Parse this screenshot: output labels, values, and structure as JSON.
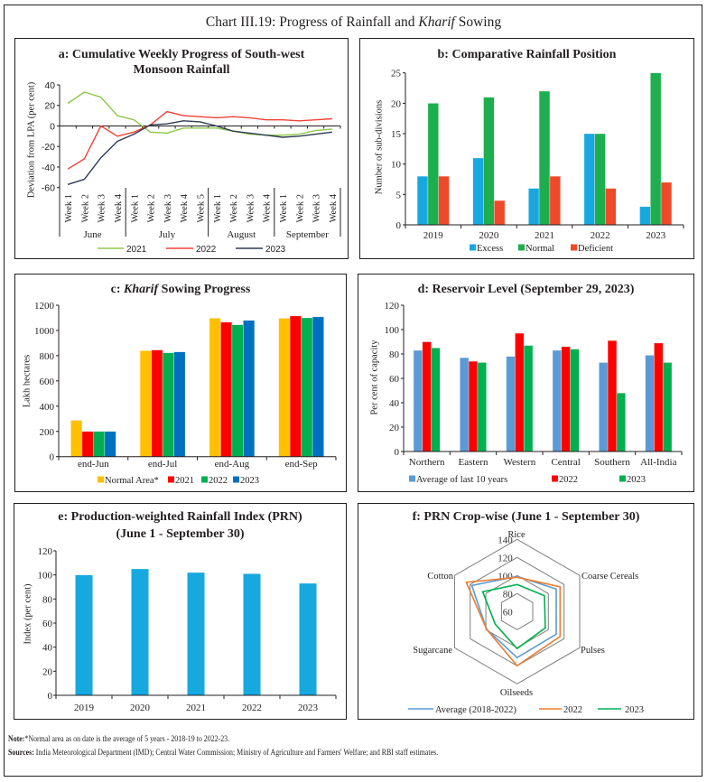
{
  "header": {
    "title_part1": "Chart III.19: Progress of Rainfall and ",
    "title_italic": "Kharif",
    "title_part2": " Sowing"
  },
  "chart_data": [
    {
      "id": "a",
      "type": "line",
      "title_lines": [
        "a: Cumulative Weekly Progress of South-west",
        "Monsoon Rainfall"
      ],
      "xlabel": "",
      "ylabel": "Deviation from LPA (per cent)",
      "ylim": [
        -60,
        40
      ],
      "yticks": [
        "40",
        "20",
        "0",
        "-20",
        "-40",
        "-60"
      ],
      "ytick_values": [
        40,
        20,
        0,
        -20,
        -40,
        -60
      ],
      "x": [
        "Week 1",
        "Week 2",
        "Week 3",
        "Week 4",
        "Week 1",
        "Week 2",
        "Week 3",
        "Week 4",
        "Week 5",
        "Week 1",
        "Week 2",
        "Week 3",
        "Week 4",
        "Week 1",
        "Week 2",
        "Week 3",
        "Week 4"
      ],
      "month_groups": [
        {
          "name": "June",
          "weeks": 4
        },
        {
          "name": "July",
          "weeks": 5
        },
        {
          "name": "August",
          "weeks": 4
        },
        {
          "name": "September",
          "weeks": 4
        }
      ],
      "series": [
        {
          "name": "2021",
          "color": "#8CC84B",
          "values": [
            22,
            33,
            28,
            10,
            6,
            -6,
            -7,
            -2,
            -2,
            -2,
            -5,
            -8,
            -9,
            -9,
            -8,
            -4.5,
            -3
          ]
        },
        {
          "name": "2022",
          "color": "#F0423A",
          "values": [
            -42,
            -32,
            0,
            -10,
            -6,
            1,
            14,
            10,
            9,
            8,
            9,
            8,
            6,
            6,
            5,
            6,
            7
          ]
        },
        {
          "name": "2023",
          "color": "#2E3B55",
          "values": [
            -57,
            -52,
            -31,
            -15,
            -8,
            1,
            2,
            5,
            4,
            0,
            -5,
            -7,
            -9,
            -11,
            -10,
            -8,
            -6
          ]
        }
      ],
      "legend": "bottom",
      "grid": false
    },
    {
      "id": "b",
      "type": "bar",
      "title": "b: Comparative Rainfall Position",
      "xlabel": "",
      "ylabel": "Number of sub-divisions",
      "ylim": [
        0,
        25
      ],
      "yticks": [
        "0",
        "5",
        "10",
        "15",
        "20",
        "25"
      ],
      "ytick_values": [
        0,
        5,
        10,
        15,
        20,
        25
      ],
      "categories": [
        "2019",
        "2020",
        "2021",
        "2022",
        "2023"
      ],
      "series": [
        {
          "name": "Excess",
          "color": "#17A8E0",
          "values": [
            8,
            11,
            6,
            15,
            3
          ]
        },
        {
          "name": "Normal",
          "color": "#1DAF4E",
          "values": [
            20,
            21,
            22,
            15,
            25
          ]
        },
        {
          "name": "Deficient",
          "color": "#EE4A2A",
          "values": [
            8,
            4,
            8,
            6,
            7
          ]
        }
      ],
      "legend": "bottom",
      "grid": false
    },
    {
      "id": "c",
      "type": "bar",
      "title_parts": [
        "c: ",
        "Kharif",
        " Sowing Progress"
      ],
      "xlabel": "",
      "ylabel": "Lakh hectares",
      "ylim": [
        0,
        1200
      ],
      "yticks": [
        "0",
        "200",
        "400",
        "600",
        "800",
        "1000",
        "1200"
      ],
      "ytick_values": [
        0,
        200,
        400,
        600,
        800,
        1000,
        1200
      ],
      "categories": [
        "end-Jun",
        "end-Jul",
        "end-Aug",
        "end-Sep"
      ],
      "series": [
        {
          "name": "Normal Area*",
          "color": "#FFC000",
          "values": [
            288,
            840,
            1098,
            1097
          ]
        },
        {
          "name": "2021",
          "color": "#FF0000",
          "values": [
            200,
            845,
            1066,
            1115
          ]
        },
        {
          "name": "2022",
          "color": "#00B050",
          "values": [
            200,
            823,
            1045,
            1100
          ]
        },
        {
          "name": "2023",
          "color": "#0070C0",
          "values": [
            200,
            830,
            1080,
            1108
          ]
        }
      ],
      "legend": "bottom",
      "grid": false
    },
    {
      "id": "d",
      "type": "bar",
      "title": "d: Reservoir Level (September 29, 2023)",
      "xlabel": "",
      "ylabel": "Per cent of capacity",
      "ylim": [
        0,
        120
      ],
      "yticks": [
        "0",
        "20",
        "40",
        "60",
        "80",
        "100",
        "120"
      ],
      "ytick_values": [
        0,
        20,
        40,
        60,
        80,
        100,
        120
      ],
      "categories": [
        "Northern",
        "Eastern",
        "Western",
        "Central",
        "Southern",
        "All-India"
      ],
      "series": [
        {
          "name": "Average of last 10 years",
          "color": "#5B9BD5",
          "values": [
            83,
            77,
            78,
            83,
            73,
            79
          ]
        },
        {
          "name": "2022",
          "color": "#FF0000",
          "values": [
            90,
            74,
            97,
            86,
            91,
            89
          ]
        },
        {
          "name": "2023",
          "color": "#00B050",
          "values": [
            85,
            73,
            87,
            84,
            48,
            73
          ]
        }
      ],
      "legend": "bottom",
      "grid": false
    },
    {
      "id": "e",
      "type": "bar",
      "title_lines": [
        "e: Production-weighted Rainfall Index (PRN)",
        "(June 1 - September 30)"
      ],
      "xlabel": "",
      "ylabel": "Index (per cent)",
      "ylim": [
        0,
        120
      ],
      "yticks": [
        "0",
        "20",
        "40",
        "60",
        "80",
        "100",
        "120"
      ],
      "ytick_values": [
        0,
        20,
        40,
        60,
        80,
        100,
        120
      ],
      "categories": [
        "2019",
        "2020",
        "2021",
        "2022",
        "2023"
      ],
      "series": [
        {
          "name": "PRN",
          "color": "#16A8DF",
          "values": [
            100,
            105,
            102,
            101,
            93
          ]
        }
      ],
      "legend": "none",
      "grid": false
    },
    {
      "id": "f",
      "type": "radar",
      "title": "f: PRN Crop-wise (June 1 - September 30)",
      "axes": [
        "Rice",
        "Coarse Cereals",
        "Pulses",
        "Oilseeds",
        "Sugarcane",
        "Cotton"
      ],
      "rlim": [
        60,
        140
      ],
      "rticks": [
        "60",
        "80",
        "100",
        "120",
        "140"
      ],
      "rtick_values": [
        60,
        80,
        100,
        120,
        140
      ],
      "series": [
        {
          "name": "Average (2018-2022)",
          "color": "#5B9BD5",
          "values": [
            99,
            110,
            110,
            111,
            99,
            118
          ]
        },
        {
          "name": "2022",
          "color": "#ED7D31",
          "values": [
            98,
            115,
            115,
            120,
            99,
            125
          ]
        },
        {
          "name": "2023",
          "color": "#00B050",
          "values": [
            90,
            95,
            96,
            101,
            88,
            104
          ]
        }
      ],
      "legend": "bottom",
      "grid": true
    }
  ],
  "footer": {
    "note_label": "Note:",
    "note_text": "*Normal area as on date is the average of 5 years - 2018-19 to 2022-23.",
    "sources_label": "Sources:",
    "sources_text": " India Meteorological Department (IMD); Central Water Commission; Ministry of Agriculture and Farmers' Welfare; and RBI staff estimates."
  }
}
